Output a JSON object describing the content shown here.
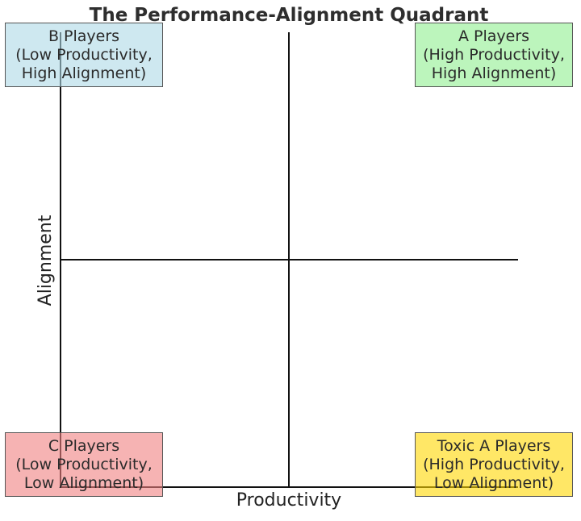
{
  "title": "The Performance-Alignment Quadrant",
  "axes": {
    "x_label": "Productivity",
    "y_label": "Alignment"
  },
  "quadrants": {
    "top_left": {
      "name": "B Players",
      "line1": "(Low Productivity,",
      "line2": "High Alignment)",
      "color": "#add8e6"
    },
    "top_right": {
      "name": "A Players",
      "line1": "(High Productivity,",
      "line2": "High Alignment)",
      "color": "#90ee90"
    },
    "bottom_left": {
      "name": "C Players",
      "line1": "(Low Productivity,",
      "line2": "Low Alignment)",
      "color": "#f08080"
    },
    "bottom_right": {
      "name": "Toxic A Players",
      "line1": "(High Productivity,",
      "line2": "Low Alignment)",
      "color": "#ffd700"
    }
  }
}
